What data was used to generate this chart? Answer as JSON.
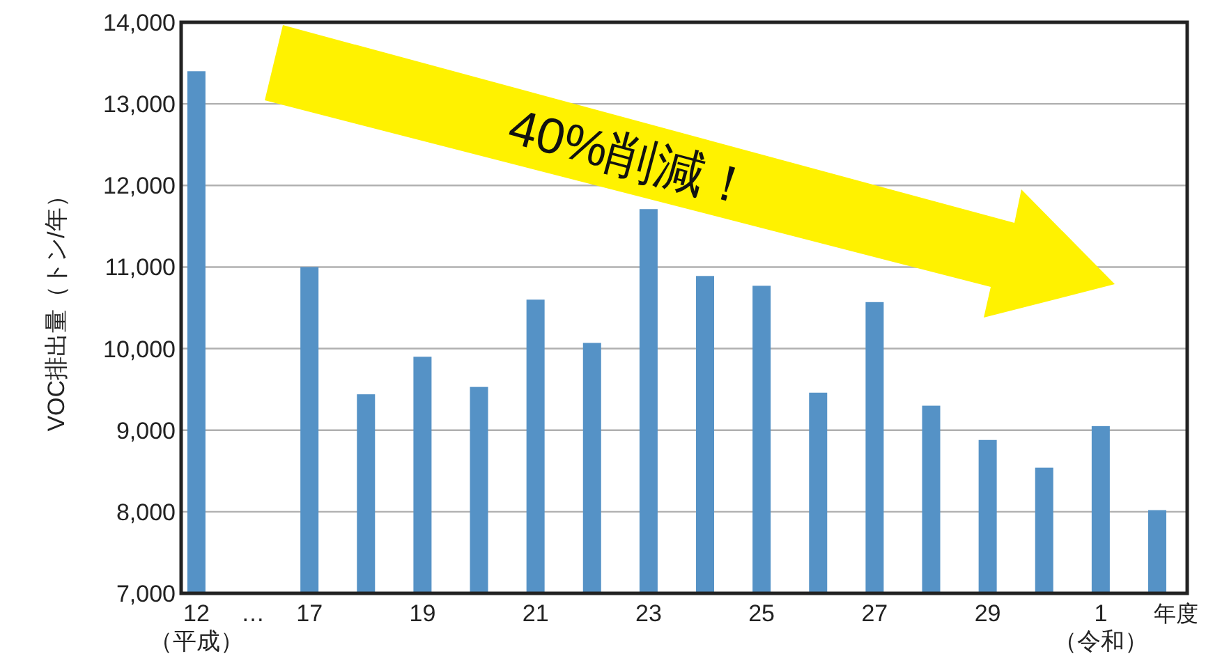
{
  "chart_data": {
    "type": "bar",
    "ylabel": "VOC排出量（トン/年）",
    "xlabel": "年度",
    "categories": [
      "12\n（平成）",
      "…",
      "17",
      null,
      "19",
      null,
      "21",
      null,
      "23",
      null,
      "25",
      null,
      "27",
      null,
      "29",
      null,
      "1\n（令和）",
      null
    ],
    "values": [
      13400,
      null,
      11000,
      9440,
      9900,
      9530,
      10600,
      10070,
      11710,
      10890,
      10770,
      9460,
      10570,
      9300,
      8880,
      8540,
      9050,
      8020
    ],
    "color": "#5592c6",
    "ylim": [
      7000,
      14000
    ],
    "yticks": [
      {
        "value": 7000,
        "label": "7,000"
      },
      {
        "value": 8000,
        "label": "8,000"
      },
      {
        "value": 9000,
        "label": "9,000"
      },
      {
        "value": 10000,
        "label": "10,000"
      },
      {
        "value": 11000,
        "label": "11,000"
      },
      {
        "value": 12000,
        "label": "12,000"
      },
      {
        "value": 13000,
        "label": "13,000"
      },
      {
        "value": 14000,
        "label": "14,000"
      }
    ],
    "grid": "y",
    "annotations": [
      "40%削減！"
    ]
  }
}
